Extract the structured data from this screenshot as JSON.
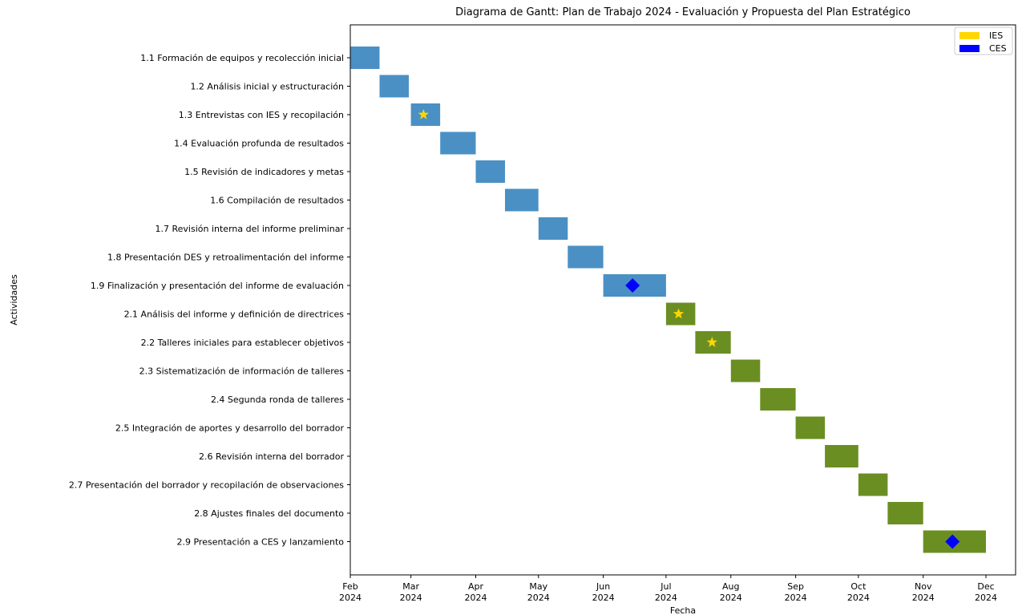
{
  "chart_data": {
    "type": "gantt",
    "title": "Diagrama de Gantt: Plan de Trabajo 2024 - Evaluación y Propuesta del Plan Estratégico",
    "xlabel": "Fecha",
    "ylabel": "Actividades",
    "xlim": [
      "2024-02-01",
      "2024-12-01"
    ],
    "x_ticks": [
      {
        "date": "2024-02-01",
        "label": [
          "Feb",
          "2024"
        ]
      },
      {
        "date": "2024-03-01",
        "label": [
          "Mar",
          "2024"
        ]
      },
      {
        "date": "2024-04-01",
        "label": [
          "Apr",
          "2024"
        ]
      },
      {
        "date": "2024-05-01",
        "label": [
          "May",
          "2024"
        ]
      },
      {
        "date": "2024-06-01",
        "label": [
          "Jun",
          "2024"
        ]
      },
      {
        "date": "2024-07-01",
        "label": [
          "Jul",
          "2024"
        ]
      },
      {
        "date": "2024-08-01",
        "label": [
          "Aug",
          "2024"
        ]
      },
      {
        "date": "2024-09-01",
        "label": [
          "Sep",
          "2024"
        ]
      },
      {
        "date": "2024-10-01",
        "label": [
          "Oct",
          "2024"
        ]
      },
      {
        "date": "2024-11-01",
        "label": [
          "Nov",
          "2024"
        ]
      },
      {
        "date": "2024-12-01",
        "label": [
          "Dec",
          "2024"
        ]
      }
    ],
    "colors": {
      "phase1": "#4a90c4",
      "phase2": "#6b8e23",
      "ies": "#ffd700",
      "ces": "#0000ff"
    },
    "tasks": [
      {
        "label": "1.1 Formación de equipos y recolección inicial",
        "start": "2024-02-01",
        "end": "2024-02-14",
        "phase": "phase1"
      },
      {
        "label": "1.2 Análisis inicial y estructuración",
        "start": "2024-02-15",
        "end": "2024-02-28",
        "phase": "phase1"
      },
      {
        "label": "1.3 Entrevistas con IES y recopilación",
        "start": "2024-03-01",
        "end": "2024-03-14",
        "phase": "phase1",
        "marker": "ies",
        "marker_date": "2024-03-07"
      },
      {
        "label": "1.4 Evaluación profunda de resultados",
        "start": "2024-03-15",
        "end": "2024-03-31",
        "phase": "phase1"
      },
      {
        "label": "1.5 Revisión de indicadores y metas",
        "start": "2024-04-01",
        "end": "2024-04-14",
        "phase": "phase1"
      },
      {
        "label": "1.6 Compilación de resultados",
        "start": "2024-04-15",
        "end": "2024-04-30",
        "phase": "phase1"
      },
      {
        "label": "1.7 Revisión interna del informe preliminar",
        "start": "2024-05-01",
        "end": "2024-05-14",
        "phase": "phase1"
      },
      {
        "label": "1.8 Presentación DES y retroalimentación del informe",
        "start": "2024-05-15",
        "end": "2024-05-31",
        "phase": "phase1"
      },
      {
        "label": "1.9 Finalización y presentación del informe de evaluación",
        "start": "2024-06-01",
        "end": "2024-06-30",
        "phase": "phase1",
        "marker": "ces",
        "marker_date": "2024-06-15"
      },
      {
        "label": "2.1 Análisis del informe y definición de directrices",
        "start": "2024-07-01",
        "end": "2024-07-14",
        "phase": "phase2",
        "marker": "ies",
        "marker_date": "2024-07-07"
      },
      {
        "label": "2.2 Talleres iniciales para establecer objetivos",
        "start": "2024-07-15",
        "end": "2024-07-31",
        "phase": "phase2",
        "marker": "ies",
        "marker_date": "2024-07-23"
      },
      {
        "label": "2.3 Sistematización de información de talleres",
        "start": "2024-08-01",
        "end": "2024-08-14",
        "phase": "phase2"
      },
      {
        "label": "2.4 Segunda ronda de talleres",
        "start": "2024-08-15",
        "end": "2024-08-31",
        "phase": "phase2"
      },
      {
        "label": "2.5 Integración de aportes y desarrollo del borrador",
        "start": "2024-09-01",
        "end": "2024-09-14",
        "phase": "phase2"
      },
      {
        "label": "2.6 Revisión interna del borrador",
        "start": "2024-09-15",
        "end": "2024-09-30",
        "phase": "phase2"
      },
      {
        "label": "2.7 Presentación del borrador y recopilación de observaciones",
        "start": "2024-10-01",
        "end": "2024-10-14",
        "phase": "phase2"
      },
      {
        "label": "2.8 Ajustes finales del documento",
        "start": "2024-10-15",
        "end": "2024-10-31",
        "phase": "phase2"
      },
      {
        "label": "2.9 Presentación a CES y lanzamiento",
        "start": "2024-11-01",
        "end": "2024-11-30",
        "phase": "phase2",
        "marker": "ces",
        "marker_date": "2024-11-15"
      }
    ],
    "legend": {
      "position": "top-right",
      "items": [
        {
          "label": "IES",
          "color": "#ffd700"
        },
        {
          "label": "CES",
          "color": "#0000ff"
        }
      ]
    },
    "grid": false
  }
}
